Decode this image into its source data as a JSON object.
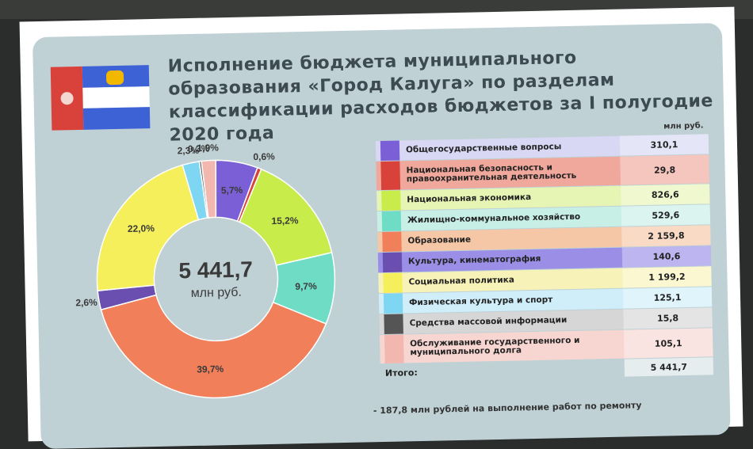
{
  "title": "Исполнение бюджета муниципального образования «Город Калуга» по разделам классификации расходов бюджетов за I полугодие 2020 года",
  "unit_label": "млн руб.",
  "center": {
    "value": "5 441,7",
    "unit": "млн руб."
  },
  "total": {
    "label": "Итого:",
    "value": "5 441,7"
  },
  "footer_text": "- 187,8 млн рублей на выполнение работ по ремонту",
  "chart_data": {
    "type": "pie",
    "title": "Исполнение бюджета муниципального образования «Город Калуга» по разделам классификации расходов бюджетов за I полугодие 2020 года",
    "categories": [
      "Общегосударственные вопросы",
      "Национальная безопасность и правоохранительная деятельность",
      "Национальная экономика",
      "Жилищно-коммунальное хозяйство",
      "Образование",
      "Культура, кинематография",
      "Социальная политика",
      "Физическая культура и спорт",
      "Средства массовой информации",
      "Обслуживание государственного и муниципального долга"
    ],
    "values": [
      310.1,
      29.8,
      826.6,
      529.6,
      2159.8,
      140.6,
      1199.2,
      125.1,
      15.8,
      105.1
    ],
    "value_labels": [
      "310,1",
      "29,8",
      "826,6",
      "529,6",
      "2 159,8",
      "140,6",
      "1 199,2",
      "125,1",
      "15,8",
      "105,1"
    ],
    "percent_labels": [
      "5,7%",
      "0,6%",
      "15,2%",
      "9,7%",
      "39,7%",
      "2,6%",
      "22,0%",
      "2,3%",
      "0,3%",
      "1,9%"
    ],
    "colors": [
      "#7a5fd6",
      "#d9423b",
      "#c8ec4a",
      "#6fdcc6",
      "#f07f5a",
      "#6b4fb0",
      "#f4ef5a",
      "#7fd6f2",
      "#555555",
      "#f2b8b0"
    ],
    "row_colors": [
      "#d8d8f4",
      "#f0a89c",
      "#e6f4b4",
      "#c8efe6",
      "#f5c7a7",
      "#9a8ee6",
      "#f7f3b8",
      "#cfeefa",
      "#d6d6d6",
      "#f7d6d2"
    ],
    "legend": "right"
  }
}
